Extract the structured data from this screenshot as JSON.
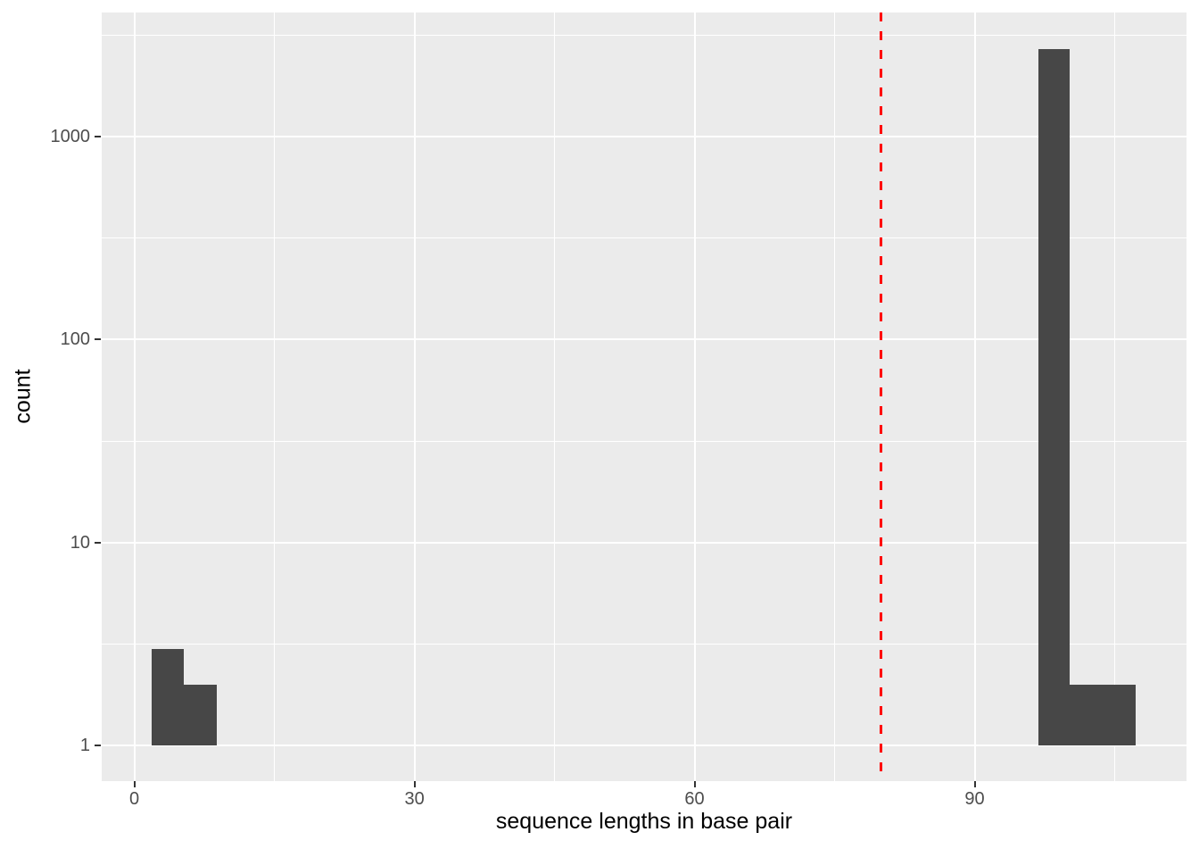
{
  "chart_data": {
    "type": "bar",
    "subtype": "histogram",
    "title": "",
    "xlabel": "sequence lengths in base pair",
    "ylabel": "count",
    "x_scale": "linear",
    "y_scale": "log10",
    "x_domain": [
      -3.5,
      112.7
    ],
    "y_domain": [
      0.67,
      4074
    ],
    "x_major_ticks": [
      0,
      30,
      60,
      90
    ],
    "x_tick_labels": [
      "0",
      "30",
      "60",
      "90"
    ],
    "x_minor_ticks": [
      15,
      45,
      75,
      105
    ],
    "y_major_ticks": [
      1,
      10,
      100,
      1000
    ],
    "y_tick_labels": [
      "1",
      "10",
      "100",
      "1000"
    ],
    "y_minor_ticks": [
      3.162,
      31.62,
      316.2,
      3162
    ],
    "bins": [
      {
        "x0": 1.8,
        "x1": 5.3,
        "count": 3
      },
      {
        "x0": 5.3,
        "x1": 8.8,
        "count": 2
      },
      {
        "x0": 96.8,
        "x1": 100.2,
        "count": 2700
      },
      {
        "x0": 100.2,
        "x1": 107.3,
        "count": 2
      }
    ],
    "bar_baseline": 1,
    "vline": {
      "x": 80,
      "style": "dashed",
      "color": "#FF0000"
    },
    "grid": "on",
    "legend": "none",
    "colors": {
      "bar_fill": "#474747",
      "panel_bg": "#EBEBEB",
      "grid_major": "#FFFFFF",
      "grid_minor": "#FFFFFF",
      "tick_mark": "#333333",
      "tick_label": "#4D4D4D",
      "axis_title": "#000000",
      "background": "#FFFFFF"
    }
  }
}
